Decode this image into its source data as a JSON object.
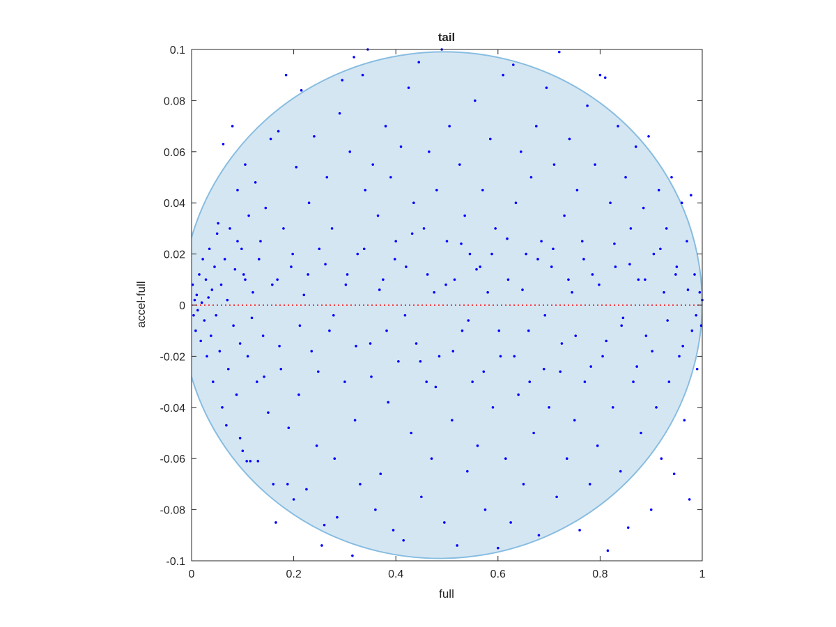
{
  "chart_data": {
    "type": "scatter",
    "title": "tail",
    "xlabel": "full",
    "ylabel": "accel-full",
    "xlim": [
      0,
      1
    ],
    "ylim": [
      -0.1,
      0.1
    ],
    "x_ticks": [
      0,
      0.2,
      0.4,
      0.6,
      0.8,
      1
    ],
    "x_tick_labels": [
      "0",
      "0.2",
      "0.4",
      "0.6",
      "0.8",
      "1"
    ],
    "y_ticks": [
      -0.1,
      -0.08,
      -0.06,
      -0.04,
      -0.02,
      0,
      0.02,
      0.04,
      0.06,
      0.08,
      0.1
    ],
    "y_tick_labels": [
      "-0.1",
      "-0.08",
      "-0.06",
      "-0.04",
      "-0.02",
      "0",
      "0.02",
      "0.04",
      "0.06",
      "0.08",
      "0.1"
    ],
    "grid": false,
    "box": true,
    "reference_line": {
      "y": 0,
      "style": "dotted",
      "color": "#ff0000"
    },
    "region": {
      "shape": "ellipse",
      "center": [
        0.49,
        0.0
      ],
      "semi_axes": [
        0.51,
        0.099
      ],
      "rotation_deg": -8,
      "fill": "#d5e6f3",
      "stroke": "#88bde0"
    },
    "series": [
      {
        "marker_color": "#0000ff",
        "points": [
          [
            0.002,
            0.008
          ],
          [
            0.004,
            -0.004
          ],
          [
            0.006,
            0.002
          ],
          [
            0.008,
            -0.01
          ],
          [
            0.01,
            0.004
          ],
          [
            0.012,
            -0.002
          ],
          [
            0.015,
            0.012
          ],
          [
            0.018,
            -0.014
          ],
          [
            0.02,
            0.001
          ],
          [
            0.022,
            0.018
          ],
          [
            0.025,
            -0.006
          ],
          [
            0.028,
            0.01
          ],
          [
            0.03,
            -0.02
          ],
          [
            0.033,
            0.003
          ],
          [
            0.035,
            0.022
          ],
          [
            0.038,
            -0.012
          ],
          [
            0.04,
            0.006
          ],
          [
            0.042,
            -0.03
          ],
          [
            0.045,
            0.015
          ],
          [
            0.048,
            -0.004
          ],
          [
            0.05,
            0.028
          ],
          [
            0.052,
            0.032
          ],
          [
            0.055,
            -0.018
          ],
          [
            0.058,
            0.008
          ],
          [
            0.06,
            -0.04
          ],
          [
            0.062,
            0.063
          ],
          [
            0.065,
            0.018
          ],
          [
            0.068,
            -0.047
          ],
          [
            0.07,
            0.002
          ],
          [
            0.072,
            -0.025
          ],
          [
            0.075,
            0.03
          ],
          [
            0.08,
            0.07
          ],
          [
            0.082,
            -0.008
          ],
          [
            0.085,
            0.014
          ],
          [
            0.088,
            -0.035
          ],
          [
            0.09,
            0.045
          ],
          [
            0.095,
            -0.052
          ],
          [
            0.098,
            0.022
          ],
          [
            0.1,
            -0.057
          ],
          [
            0.102,
            0.012
          ],
          [
            0.105,
            0.055
          ],
          [
            0.108,
            -0.061
          ],
          [
            0.11,
            -0.02
          ],
          [
            0.112,
            0.035
          ],
          [
            0.115,
            -0.061
          ],
          [
            0.12,
            0.005
          ],
          [
            0.125,
            0.048
          ],
          [
            0.128,
            -0.03
          ],
          [
            0.13,
            -0.061
          ],
          [
            0.135,
            0.025
          ],
          [
            0.14,
            -0.012
          ],
          [
            0.145,
            0.038
          ],
          [
            0.15,
            -0.042
          ],
          [
            0.155,
            0.065
          ],
          [
            0.16,
            -0.07
          ],
          [
            0.165,
            -0.085
          ],
          [
            0.168,
            0.01
          ],
          [
            0.17,
            0.068
          ],
          [
            0.175,
            -0.025
          ],
          [
            0.18,
            0.03
          ],
          [
            0.185,
            0.09
          ],
          [
            0.188,
            -0.07
          ],
          [
            0.19,
            -0.048
          ],
          [
            0.195,
            0.015
          ],
          [
            0.2,
            -0.076
          ],
          [
            0.205,
            0.054
          ],
          [
            0.21,
            -0.035
          ],
          [
            0.215,
            0.084
          ],
          [
            0.22,
            0.004
          ],
          [
            0.225,
            -0.072
          ],
          [
            0.23,
            0.04
          ],
          [
            0.235,
            -0.018
          ],
          [
            0.24,
            0.066
          ],
          [
            0.245,
            -0.055
          ],
          [
            0.25,
            0.022
          ],
          [
            0.255,
            -0.094
          ],
          [
            0.26,
            -0.086
          ],
          [
            0.265,
            0.05
          ],
          [
            0.27,
            -0.01
          ],
          [
            0.275,
            0.03
          ],
          [
            0.28,
            -0.06
          ],
          [
            0.285,
            -0.083
          ],
          [
            0.29,
            0.075
          ],
          [
            0.295,
            0.088
          ],
          [
            0.3,
            -0.03
          ],
          [
            0.305,
            0.012
          ],
          [
            0.31,
            0.06
          ],
          [
            0.315,
            -0.098
          ],
          [
            0.318,
            0.097
          ],
          [
            0.32,
            -0.045
          ],
          [
            0.325,
            0.02
          ],
          [
            0.33,
            -0.07
          ],
          [
            0.335,
            0.09
          ],
          [
            0.34,
            0.045
          ],
          [
            0.345,
            0.1
          ],
          [
            0.35,
            -0.015
          ],
          [
            0.355,
            0.055
          ],
          [
            0.36,
            -0.08
          ],
          [
            0.365,
            0.035
          ],
          [
            0.37,
            -0.066
          ],
          [
            0.375,
            0.01
          ],
          [
            0.38,
            0.07
          ],
          [
            0.385,
            -0.038
          ],
          [
            0.39,
            0.05
          ],
          [
            0.395,
            -0.088
          ],
          [
            0.4,
            0.025
          ],
          [
            0.405,
            -0.022
          ],
          [
            0.41,
            0.062
          ],
          [
            0.415,
            -0.092
          ],
          [
            0.42,
            0.015
          ],
          [
            0.425,
            0.085
          ],
          [
            0.43,
            -0.05
          ],
          [
            0.435,
            0.04
          ],
          [
            0.44,
            -0.015
          ],
          [
            0.445,
            0.095
          ],
          [
            0.45,
            -0.075
          ],
          [
            0.455,
            0.03
          ],
          [
            0.46,
            -0.03
          ],
          [
            0.465,
            0.06
          ],
          [
            0.47,
            -0.06
          ],
          [
            0.475,
            0.005
          ],
          [
            0.48,
            0.045
          ],
          [
            0.485,
            -0.02
          ],
          [
            0.49,
            0.1
          ],
          [
            0.495,
            -0.085
          ],
          [
            0.5,
            0.025
          ],
          [
            0.505,
            0.07
          ],
          [
            0.51,
            -0.045
          ],
          [
            0.515,
            0.01
          ],
          [
            0.52,
            -0.094
          ],
          [
            0.525,
            0.055
          ],
          [
            0.53,
            -0.01
          ],
          [
            0.535,
            0.035
          ],
          [
            0.54,
            -0.065
          ],
          [
            0.545,
            0.02
          ],
          [
            0.55,
            -0.03
          ],
          [
            0.555,
            0.08
          ],
          [
            0.56,
            -0.055
          ],
          [
            0.565,
            0.015
          ],
          [
            0.57,
            0.045
          ],
          [
            0.575,
            -0.08
          ],
          [
            0.58,
            0.005
          ],
          [
            0.585,
            0.065
          ],
          [
            0.59,
            -0.04
          ],
          [
            0.595,
            0.03
          ],
          [
            0.6,
            -0.095
          ],
          [
            0.605,
            -0.02
          ],
          [
            0.61,
            0.09
          ],
          [
            0.615,
            -0.06
          ],
          [
            0.62,
            0.01
          ],
          [
            0.625,
            -0.085
          ],
          [
            0.63,
            0.094
          ],
          [
            0.635,
            0.04
          ],
          [
            0.64,
            -0.035
          ],
          [
            0.645,
            0.06
          ],
          [
            0.65,
            -0.07
          ],
          [
            0.655,
            0.02
          ],
          [
            0.66,
            -0.01
          ],
          [
            0.665,
            0.05
          ],
          [
            0.67,
            -0.05
          ],
          [
            0.675,
            0.07
          ],
          [
            0.68,
            -0.09
          ],
          [
            0.685,
            0.025
          ],
          [
            0.69,
            -0.025
          ],
          [
            0.695,
            0.085
          ],
          [
            0.7,
            -0.04
          ],
          [
            0.705,
            0.015
          ],
          [
            0.71,
            0.055
          ],
          [
            0.715,
            -0.075
          ],
          [
            0.72,
            0.099
          ],
          [
            0.725,
            -0.015
          ],
          [
            0.73,
            0.035
          ],
          [
            0.735,
            -0.06
          ],
          [
            0.74,
            0.065
          ],
          [
            0.745,
            0.005
          ],
          [
            0.75,
            -0.045
          ],
          [
            0.755,
            0.045
          ],
          [
            0.76,
            -0.088
          ],
          [
            0.765,
            0.025
          ],
          [
            0.77,
            -0.03
          ],
          [
            0.775,
            0.078
          ],
          [
            0.78,
            -0.07
          ],
          [
            0.785,
            0.012
          ],
          [
            0.79,
            0.055
          ],
          [
            0.795,
            -0.055
          ],
          [
            0.8,
            0.09
          ],
          [
            0.805,
            -0.02
          ],
          [
            0.81,
            0.089
          ],
          [
            0.815,
            -0.096
          ],
          [
            0.82,
            0.04
          ],
          [
            0.825,
            -0.04
          ],
          [
            0.83,
            0.015
          ],
          [
            0.835,
            0.07
          ],
          [
            0.84,
            -0.065
          ],
          [
            0.845,
            -0.005
          ],
          [
            0.85,
            0.05
          ],
          [
            0.855,
            -0.087
          ],
          [
            0.86,
            0.03
          ],
          [
            0.865,
            -0.03
          ],
          [
            0.87,
            0.062
          ],
          [
            0.875,
            0.01
          ],
          [
            0.88,
            -0.05
          ],
          [
            0.885,
            0.038
          ],
          [
            0.89,
            -0.012
          ],
          [
            0.895,
            0.066
          ],
          [
            0.9,
            -0.08
          ],
          [
            0.905,
            0.02
          ],
          [
            0.91,
            -0.04
          ],
          [
            0.915,
            0.045
          ],
          [
            0.92,
            -0.06
          ],
          [
            0.925,
            0.005
          ],
          [
            0.93,
            0.03
          ],
          [
            0.935,
            -0.03
          ],
          [
            0.94,
            0.05
          ],
          [
            0.945,
            -0.066
          ],
          [
            0.95,
            0.015
          ],
          [
            0.955,
            -0.02
          ],
          [
            0.96,
            0.04
          ],
          [
            0.965,
            -0.045
          ],
          [
            0.97,
            0.025
          ],
          [
            0.975,
            -0.076
          ],
          [
            0.978,
            0.043
          ],
          [
            0.98,
            -0.01
          ],
          [
            0.985,
            0.012
          ],
          [
            0.99,
            -0.025
          ],
          [
            0.995,
            0.005
          ],
          [
            0.998,
            -0.008
          ],
          [
            1.0,
            0.002
          ],
          [
            0.09,
            0.025
          ],
          [
            0.095,
            -0.015
          ],
          [
            0.105,
            0.01
          ],
          [
            0.118,
            -0.005
          ],
          [
            0.132,
            0.018
          ],
          [
            0.142,
            -0.028
          ],
          [
            0.158,
            0.008
          ],
          [
            0.172,
            -0.016
          ],
          [
            0.198,
            0.02
          ],
          [
            0.212,
            -0.008
          ],
          [
            0.228,
            0.012
          ],
          [
            0.248,
            -0.026
          ],
          [
            0.262,
            0.016
          ],
          [
            0.278,
            -0.004
          ],
          [
            0.302,
            0.008
          ],
          [
            0.322,
            -0.016
          ],
          [
            0.338,
            0.022
          ],
          [
            0.352,
            -0.028
          ],
          [
            0.368,
            0.006
          ],
          [
            0.382,
            -0.01
          ],
          [
            0.398,
            0.018
          ],
          [
            0.418,
            -0.004
          ],
          [
            0.432,
            0.028
          ],
          [
            0.448,
            -0.022
          ],
          [
            0.462,
            0.012
          ],
          [
            0.478,
            -0.032
          ],
          [
            0.498,
            0.008
          ],
          [
            0.512,
            -0.018
          ],
          [
            0.528,
            0.024
          ],
          [
            0.542,
            -0.006
          ],
          [
            0.558,
            0.014
          ],
          [
            0.572,
            -0.026
          ],
          [
            0.588,
            0.02
          ],
          [
            0.602,
            -0.01
          ],
          [
            0.618,
            0.026
          ],
          [
            0.632,
            -0.02
          ],
          [
            0.648,
            0.006
          ],
          [
            0.662,
            -0.03
          ],
          [
            0.678,
            0.018
          ],
          [
            0.692,
            -0.004
          ],
          [
            0.708,
            0.022
          ],
          [
            0.722,
            -0.026
          ],
          [
            0.738,
            0.01
          ],
          [
            0.752,
            -0.012
          ],
          [
            0.768,
            0.018
          ],
          [
            0.782,
            -0.024
          ],
          [
            0.798,
            0.008
          ],
          [
            0.812,
            -0.014
          ],
          [
            0.828,
            0.024
          ],
          [
            0.842,
            -0.008
          ],
          [
            0.858,
            0.016
          ],
          [
            0.872,
            -0.024
          ],
          [
            0.888,
            0.01
          ],
          [
            0.902,
            -0.018
          ],
          [
            0.918,
            0.022
          ],
          [
            0.932,
            -0.006
          ],
          [
            0.948,
            0.012
          ],
          [
            0.962,
            -0.016
          ],
          [
            0.972,
            0.006
          ],
          [
            0.988,
            -0.004
          ]
        ]
      }
    ]
  }
}
